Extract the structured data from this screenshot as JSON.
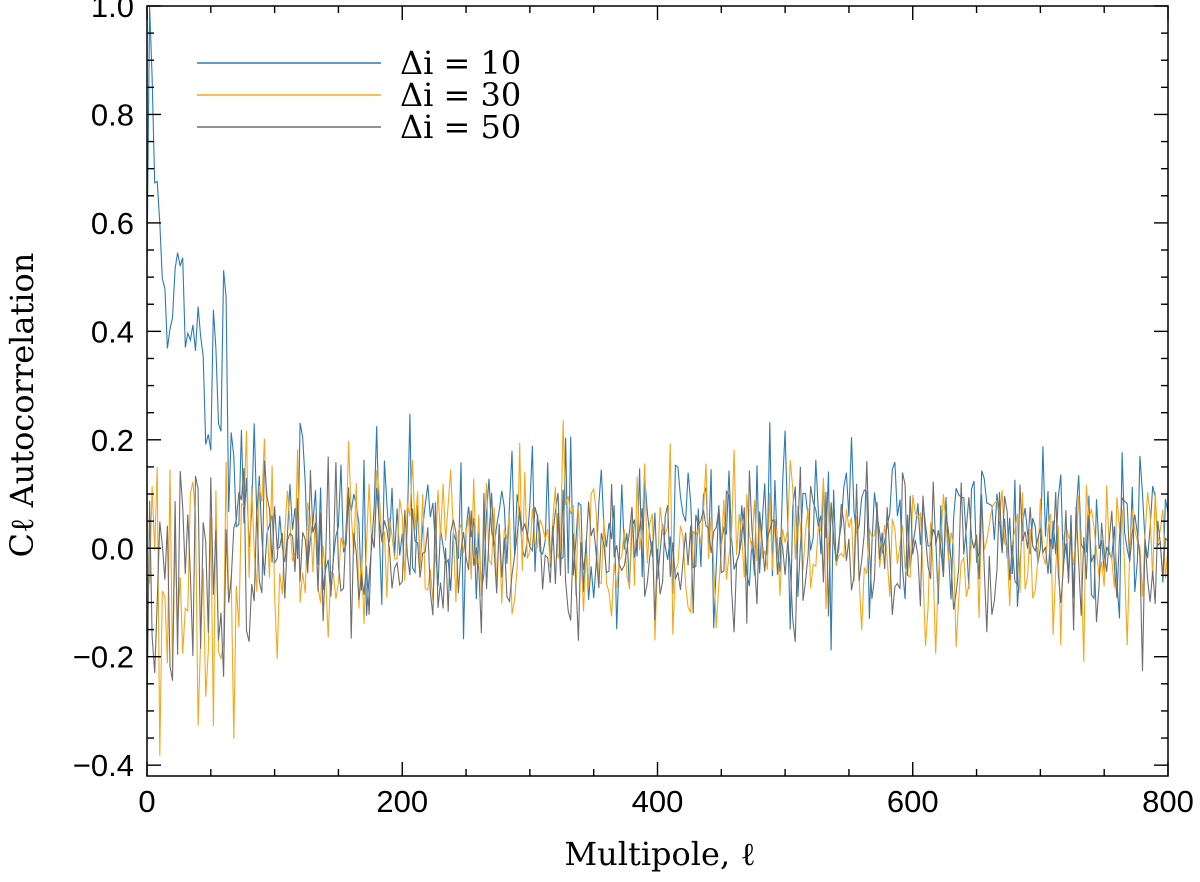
{
  "chart_data": {
    "type": "line",
    "title": "",
    "xlabel": "Multipole, ℓ",
    "ylabel": "Cℓ Autocorrelation",
    "xlim": [
      0,
      800
    ],
    "ylim": [
      -0.42,
      1.0
    ],
    "x_ticks": [
      0,
      200,
      400,
      600,
      800
    ],
    "x_tick_labels": [
      "0",
      "200",
      "400",
      "600",
      "800"
    ],
    "x_minor_step": 50,
    "y_ticks": [
      -0.4,
      -0.2,
      0.0,
      0.2,
      0.4,
      0.6,
      0.8,
      1.0
    ],
    "y_tick_labels": [
      "−0.4",
      "−0.2",
      "0.0",
      "0.2",
      "0.4",
      "0.6",
      "0.8",
      "1.0"
    ],
    "y_minor_step": 0.05,
    "grid": false,
    "legend_position": "top-left",
    "x_step": 2,
    "series": [
      {
        "name": "Δi = 10",
        "color": "#2e7bb3",
        "anchors": [
          [
            0,
            0.55
          ],
          [
            2,
            0.88
          ],
          [
            5,
            0.78
          ],
          [
            8,
            0.62
          ],
          [
            12,
            0.6
          ],
          [
            20,
            0.45
          ],
          [
            30,
            0.38
          ],
          [
            45,
            0.3
          ],
          [
            55,
            0.32
          ],
          [
            62,
            0.36
          ],
          [
            75,
            0.12
          ],
          [
            100,
            0.05
          ],
          [
            200,
            0.03
          ],
          [
            400,
            0.03
          ],
          [
            600,
            0.04
          ],
          [
            800,
            0.04
          ]
        ],
        "amplitude": [
          [
            0,
            0.12
          ],
          [
            70,
            0.1
          ],
          [
            100,
            0.08
          ],
          [
            800,
            0.08
          ]
        ],
        "seed": 11
      },
      {
        "name": "Δi = 30",
        "color": "#f5a81c",
        "anchors": [
          [
            0,
            0.1
          ],
          [
            6,
            0.05
          ],
          [
            10,
            -0.15
          ],
          [
            20,
            -0.05
          ],
          [
            40,
            -0.05
          ],
          [
            60,
            -0.08
          ],
          [
            80,
            0.0
          ],
          [
            120,
            0.0
          ],
          [
            800,
            0.0
          ]
        ],
        "amplitude": [
          [
            0,
            0.14
          ],
          [
            60,
            0.12
          ],
          [
            100,
            0.08
          ],
          [
            800,
            0.07
          ]
        ],
        "seed": 23
      },
      {
        "name": "Δi = 50",
        "color": "#6e6e6e",
        "anchors": [
          [
            0,
            -0.18
          ],
          [
            6,
            -0.05
          ],
          [
            20,
            -0.08
          ],
          [
            40,
            -0.05
          ],
          [
            80,
            0.0
          ],
          [
            800,
            -0.01
          ]
        ],
        "amplitude": [
          [
            0,
            0.12
          ],
          [
            60,
            0.1
          ],
          [
            100,
            0.07
          ],
          [
            800,
            0.07
          ]
        ],
        "seed": 37
      }
    ]
  }
}
